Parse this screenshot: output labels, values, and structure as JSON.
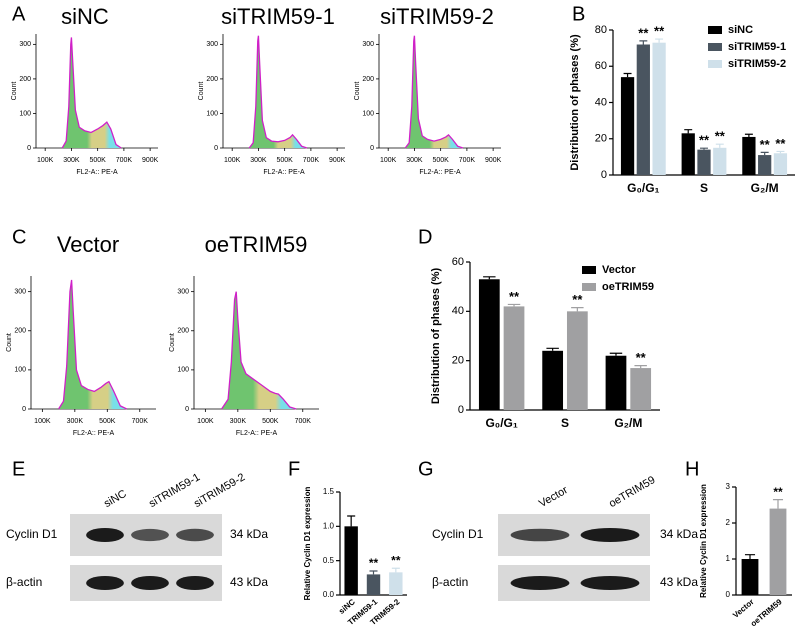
{
  "panel_letters": [
    "A",
    "B",
    "C",
    "D",
    "E",
    "F",
    "G",
    "H"
  ],
  "chart_data": [
    {
      "type": "flow",
      "title": "siNC",
      "xlabel": "FL2-A:: PE-A",
      "ylabel": "Count",
      "x": [
        230000,
        260000,
        280000,
        295000,
        300000,
        310000,
        330000,
        360000,
        400000,
        450000,
        500000,
        540000,
        570000,
        600000,
        640000,
        680000
      ],
      "values": [
        0,
        20,
        120,
        300,
        320,
        250,
        110,
        60,
        50,
        45,
        55,
        65,
        75,
        55,
        10,
        0
      ],
      "xlim": [
        30000,
        960000
      ],
      "ylim": [
        0,
        330
      ],
      "xticks": [
        {
          "value": 100000,
          "label": "100K"
        },
        {
          "value": 300000,
          "label": "300K"
        },
        {
          "value": 500000,
          "label": "500K"
        },
        {
          "value": 700000,
          "label": "700K"
        },
        {
          "value": 900000,
          "label": "900K"
        }
      ],
      "yticks": [
        0,
        100,
        200,
        300
      ]
    },
    {
      "type": "flow",
      "title": "siTRIM59-1",
      "xlabel": "FL2-A:: PE-A",
      "ylabel": "Count",
      "x": [
        230000,
        260000,
        280000,
        295000,
        300000,
        310000,
        330000,
        360000,
        400000,
        450000,
        500000,
        540000,
        560000,
        590000,
        630000,
        670000
      ],
      "values": [
        0,
        15,
        120,
        310,
        325,
        240,
        80,
        30,
        20,
        18,
        22,
        30,
        38,
        25,
        5,
        0
      ],
      "xlim": [
        30000,
        960000
      ],
      "ylim": [
        0,
        330
      ],
      "xticks": [
        {
          "value": 100000,
          "label": "100K"
        },
        {
          "value": 300000,
          "label": "300K"
        },
        {
          "value": 500000,
          "label": "500K"
        },
        {
          "value": 700000,
          "label": "700K"
        },
        {
          "value": 900000,
          "label": "900K"
        }
      ],
      "yticks": [
        0,
        100,
        200,
        300
      ]
    },
    {
      "type": "flow",
      "title": "siTRIM59-2",
      "xlabel": "FL2-A:: PE-A",
      "ylabel": "Count",
      "x": [
        230000,
        260000,
        280000,
        295000,
        300000,
        310000,
        330000,
        360000,
        400000,
        450000,
        500000,
        540000,
        560000,
        590000,
        630000,
        670000
      ],
      "values": [
        0,
        15,
        120,
        310,
        325,
        240,
        85,
        35,
        25,
        20,
        25,
        32,
        38,
        25,
        5,
        0
      ],
      "xlim": [
        30000,
        960000
      ],
      "ylim": [
        0,
        330
      ],
      "xticks": [
        {
          "value": 100000,
          "label": "100K"
        },
        {
          "value": 300000,
          "label": "300K"
        },
        {
          "value": 500000,
          "label": "500K"
        },
        {
          "value": 700000,
          "label": "700K"
        },
        {
          "value": 900000,
          "label": "900K"
        }
      ],
      "yticks": [
        0,
        100,
        200,
        300
      ]
    },
    {
      "type": "bar",
      "ylabel": "Distribution of phases (%)",
      "categories": [
        "G₀/G₁",
        "S",
        "G₂/M"
      ],
      "series": [
        {
          "name": "siNC",
          "color": "#000000",
          "values": [
            54,
            23,
            21
          ],
          "errors": [
            2,
            2,
            1.5
          ]
        },
        {
          "name": "siTRIM59-1",
          "color": "#4a5560",
          "values": [
            72,
            14,
            11
          ],
          "errors": [
            2,
            0.8,
            1.5
          ],
          "annotations": [
            "**",
            "**",
            "**"
          ]
        },
        {
          "name": "siTRIM59-2",
          "color": "#cfe0ea",
          "values": [
            73,
            15,
            12
          ],
          "errors": [
            2,
            2,
            1
          ],
          "annotations": [
            "**",
            "**",
            "**"
          ]
        }
      ],
      "ylim": [
        0,
        80
      ],
      "yticks": [
        0,
        20,
        40,
        60,
        80
      ],
      "legend": "top-right"
    },
    {
      "type": "flow",
      "title": "Vector",
      "xlabel": "FL2-A:: PE-A",
      "ylabel": "Count",
      "x": [
        200000,
        230000,
        250000,
        270000,
        280000,
        290000,
        310000,
        340000,
        380000,
        420000,
        460000,
        490000,
        510000,
        540000,
        580000,
        620000
      ],
      "values": [
        0,
        20,
        110,
        300,
        330,
        250,
        100,
        60,
        50,
        45,
        55,
        65,
        70,
        45,
        8,
        0
      ],
      "xlim": [
        30000,
        800000
      ],
      "ylim": [
        0,
        340
      ],
      "xticks": [
        {
          "value": 100000,
          "label": "100K"
        },
        {
          "value": 300000,
          "label": "300K"
        },
        {
          "value": 500000,
          "label": "500K"
        },
        {
          "value": 700000,
          "label": "700K"
        }
      ],
      "yticks": [
        0,
        100,
        200,
        300
      ]
    },
    {
      "type": "flow",
      "title": "oeTRIM59",
      "xlabel": "FL2-A:: PE-A",
      "ylabel": "Count",
      "x": [
        200000,
        240000,
        260000,
        280000,
        290000,
        300000,
        320000,
        350000,
        400000,
        450000,
        500000,
        530000,
        550000,
        580000,
        620000,
        660000
      ],
      "values": [
        0,
        25,
        120,
        280,
        300,
        230,
        120,
        90,
        75,
        60,
        45,
        40,
        38,
        25,
        5,
        0
      ],
      "xlim": [
        30000,
        800000
      ],
      "ylim": [
        0,
        340
      ],
      "xticks": [
        {
          "value": 100000,
          "label": "100K"
        },
        {
          "value": 300000,
          "label": "300K"
        },
        {
          "value": 500000,
          "label": "500K"
        },
        {
          "value": 700000,
          "label": "700K"
        }
      ],
      "yticks": [
        0,
        100,
        200,
        300
      ]
    },
    {
      "type": "bar",
      "ylabel": "Distribution of phases (%)",
      "categories": [
        "G₀/G₁",
        "S",
        "G₂/M"
      ],
      "series": [
        {
          "name": "Vector",
          "color": "#000000",
          "values": [
            53,
            24,
            22
          ],
          "errors": [
            1,
            1,
            1
          ]
        },
        {
          "name": "oeTRIM59",
          "color": "#a0a0a2",
          "values": [
            42,
            40,
            17
          ],
          "errors": [
            0.8,
            1.5,
            1
          ],
          "annotations": [
            "**",
            "**",
            "**"
          ]
        }
      ],
      "ylim": [
        0,
        60
      ],
      "yticks": [
        0,
        20,
        40,
        60
      ],
      "legend": "top-right"
    },
    {
      "type": "bar",
      "ylabel": "Relative Cyclin D1 expression",
      "categories": [
        "siNC",
        "TRIM59-1",
        "TRIM59-2"
      ],
      "values": [
        1.0,
        0.3,
        0.33
      ],
      "errors": [
        0.15,
        0.05,
        0.06
      ],
      "colors": [
        "#000000",
        "#4a5560",
        "#cfe0ea"
      ],
      "annotations": [
        null,
        "**",
        "**"
      ],
      "ylim": [
        0,
        1.5
      ],
      "yticks": [
        {
          "value": 0,
          "label": "0.0"
        },
        {
          "value": 0.5,
          "label": "0.5"
        },
        {
          "value": 1,
          "label": "1.0"
        },
        {
          "value": 1.5,
          "label": "1.5"
        }
      ]
    },
    {
      "type": "bar",
      "ylabel": "Relative Cyclin D1 expression",
      "categories": [
        "Vector",
        "oeTRIM59"
      ],
      "values": [
        1.0,
        2.4
      ],
      "errors": [
        0.12,
        0.25
      ],
      "colors": [
        "#000000",
        "#a0a0a2"
      ],
      "annotations": [
        null,
        "**"
      ],
      "ylim": [
        0,
        3
      ],
      "yticks": [
        0,
        1,
        2,
        3
      ]
    }
  ],
  "blots": [
    {
      "lanes": [
        "siNC",
        "siTRIM59-1",
        "siTRIM59-2"
      ],
      "rows": [
        "Cyclin D1",
        "β-actin"
      ],
      "sizes": [
        "34 kDa",
        "43 kDa"
      ]
    },
    {
      "lanes": [
        "Vector",
        "oeTRIM59"
      ],
      "rows": [
        "Cyclin D1",
        "β-actin"
      ],
      "sizes": [
        "34 kDa",
        "43 kDa"
      ]
    }
  ]
}
